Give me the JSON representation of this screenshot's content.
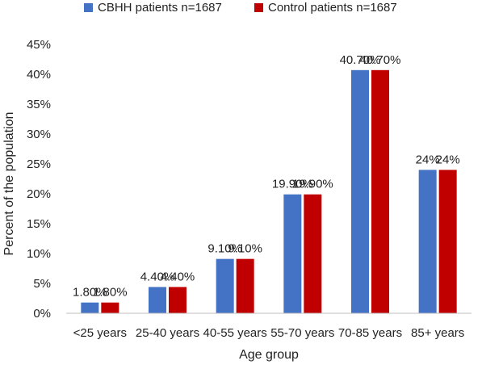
{
  "chart_data": {
    "type": "bar",
    "categories": [
      "<25 years",
      "25-40 years",
      "40-55 years",
      "55-70 years",
      "70-85 years",
      "85+ years"
    ],
    "series": [
      {
        "name": "CBHH patients n=1687",
        "color": "#4472C4",
        "values": [
          1.8,
          4.4,
          9.1,
          19.9,
          40.7,
          24
        ],
        "labels": [
          "1.80%",
          "4.40%",
          "9.10%",
          "19.90%",
          "40.70%",
          "24%"
        ]
      },
      {
        "name": "Control patients n=1687",
        "color": "#C00000",
        "values": [
          1.8,
          4.4,
          9.1,
          19.9,
          40.7,
          24
        ],
        "labels": [
          "1.80%",
          "4.40%",
          "9.10%",
          "19.90%",
          "40.70%",
          "24%"
        ]
      }
    ],
    "title": "",
    "xlabel": "Age group",
    "ylabel": "Percent of the population",
    "ylim": [
      0,
      45
    ],
    "yticks": [
      {
        "value": 0,
        "label": "0%"
      },
      {
        "value": 5,
        "label": "5%"
      },
      {
        "value": 10,
        "label": "10%"
      },
      {
        "value": 15,
        "label": "15%"
      },
      {
        "value": 20,
        "label": "20%"
      },
      {
        "value": 25,
        "label": "25%"
      },
      {
        "value": 30,
        "label": "30%"
      },
      {
        "value": 35,
        "label": "35%"
      },
      {
        "value": 40,
        "label": "40%"
      },
      {
        "value": 45,
        "label": "45%"
      }
    ],
    "grid": false,
    "legend_position": "top"
  }
}
